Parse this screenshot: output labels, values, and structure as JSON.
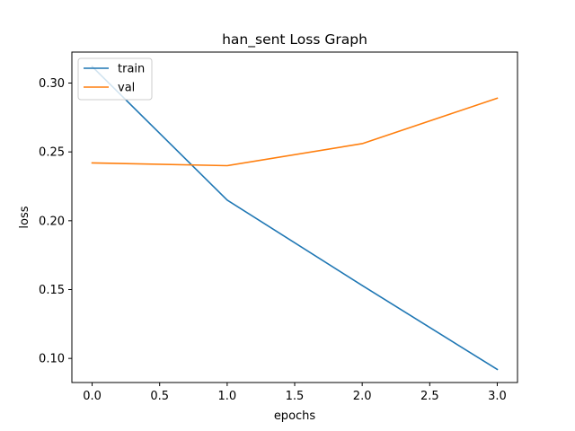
{
  "chart_data": {
    "type": "line",
    "title": "han_sent Loss Graph",
    "xlabel": "epochs",
    "ylabel": "loss",
    "xlim": [
      -0.15,
      3.15
    ],
    "ylim": [
      0.0825,
      0.3225
    ],
    "xticks": [
      0.0,
      0.5,
      1.0,
      1.5,
      2.0,
      2.5,
      3.0
    ],
    "xtick_labels": [
      "0.0",
      "0.5",
      "1.0",
      "1.5",
      "2.0",
      "2.5",
      "3.0"
    ],
    "yticks": [
      0.1,
      0.15,
      0.2,
      0.25,
      0.3
    ],
    "ytick_labels": [
      "0.10",
      "0.15",
      "0.20",
      "0.25",
      "0.30"
    ],
    "grid": false,
    "legend_position": "top-left",
    "series": [
      {
        "name": "train",
        "color": "#1f77b4",
        "x": [
          0,
          1,
          2,
          3
        ],
        "y": [
          0.312,
          0.215,
          0.153,
          0.092
        ]
      },
      {
        "name": "val",
        "color": "#ff7f0e",
        "x": [
          0,
          1,
          2,
          3
        ],
        "y": [
          0.242,
          0.24,
          0.256,
          0.289
        ]
      }
    ]
  }
}
